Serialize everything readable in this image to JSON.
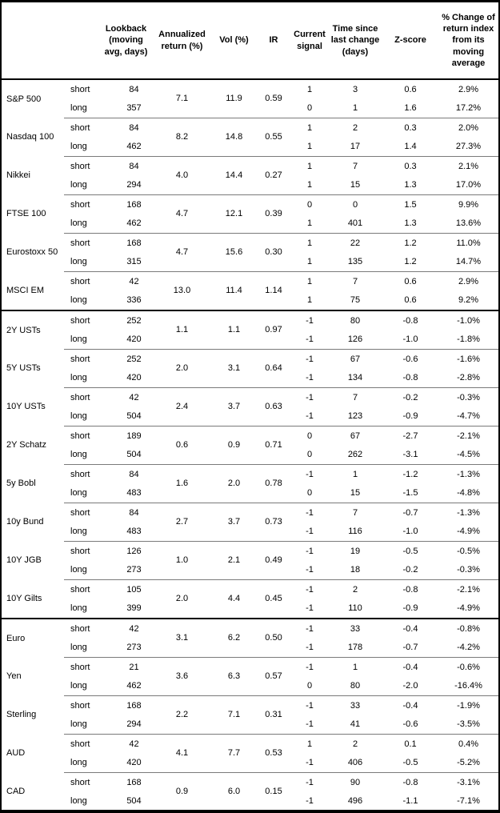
{
  "table": {
    "headers": {
      "asset": "",
      "leg": "",
      "lookback": "Lookback (moving avg, days)",
      "annualized_return": "Annualized return (%)",
      "vol": "Vol (%)",
      "ir": "IR",
      "current_signal": "Current signal",
      "time_since": "Time since last change (days)",
      "z_score": "Z-score",
      "pct_change": "% Change of return index from its moving average"
    },
    "sections": [
      {
        "groups": [
          {
            "asset": "S&P 500",
            "annualized_return": "7.1",
            "vol": "11.9",
            "ir": "0.59",
            "rows": [
              {
                "leg": "short",
                "lookback": "84",
                "signal": "1",
                "time": "3",
                "z": "0.6",
                "change": "2.9%"
              },
              {
                "leg": "long",
                "lookback": "357",
                "signal": "0",
                "time": "1",
                "z": "1.6",
                "change": "17.2%"
              }
            ]
          },
          {
            "asset": "Nasdaq 100",
            "annualized_return": "8.2",
            "vol": "14.8",
            "ir": "0.55",
            "rows": [
              {
                "leg": "short",
                "lookback": "84",
                "signal": "1",
                "time": "2",
                "z": "0.3",
                "change": "2.0%"
              },
              {
                "leg": "long",
                "lookback": "462",
                "signal": "1",
                "time": "17",
                "z": "1.4",
                "change": "27.3%"
              }
            ]
          },
          {
            "asset": "Nikkei",
            "annualized_return": "4.0",
            "vol": "14.4",
            "ir": "0.27",
            "rows": [
              {
                "leg": "short",
                "lookback": "84",
                "signal": "1",
                "time": "7",
                "z": "0.3",
                "change": "2.1%"
              },
              {
                "leg": "long",
                "lookback": "294",
                "signal": "1",
                "time": "15",
                "z": "1.3",
                "change": "17.0%"
              }
            ]
          },
          {
            "asset": "FTSE 100",
            "annualized_return": "4.7",
            "vol": "12.1",
            "ir": "0.39",
            "rows": [
              {
                "leg": "short",
                "lookback": "168",
                "signal": "0",
                "time": "0",
                "z": "1.5",
                "change": "9.9%"
              },
              {
                "leg": "long",
                "lookback": "462",
                "signal": "1",
                "time": "401",
                "z": "1.3",
                "change": "13.6%"
              }
            ]
          },
          {
            "asset": "Eurostoxx 50",
            "annualized_return": "4.7",
            "vol": "15.6",
            "ir": "0.30",
            "rows": [
              {
                "leg": "short",
                "lookback": "168",
                "signal": "1",
                "time": "22",
                "z": "1.2",
                "change": "11.0%"
              },
              {
                "leg": "long",
                "lookback": "315",
                "signal": "1",
                "time": "135",
                "z": "1.2",
                "change": "14.7%"
              }
            ]
          },
          {
            "asset": "MSCI EM",
            "annualized_return": "13.0",
            "vol": "11.4",
            "ir": "1.14",
            "rows": [
              {
                "leg": "short",
                "lookback": "42",
                "signal": "1",
                "time": "7",
                "z": "0.6",
                "change": "2.9%"
              },
              {
                "leg": "long",
                "lookback": "336",
                "signal": "1",
                "time": "75",
                "z": "0.6",
                "change": "9.2%"
              }
            ]
          }
        ]
      },
      {
        "groups": [
          {
            "asset": "2Y USTs",
            "annualized_return": "1.1",
            "vol": "1.1",
            "ir": "0.97",
            "rows": [
              {
                "leg": "short",
                "lookback": "252",
                "signal": "-1",
                "time": "80",
                "z": "-0.8",
                "change": "-1.0%"
              },
              {
                "leg": "long",
                "lookback": "420",
                "signal": "-1",
                "time": "126",
                "z": "-1.0",
                "change": "-1.8%"
              }
            ]
          },
          {
            "asset": "5Y USTs",
            "annualized_return": "2.0",
            "vol": "3.1",
            "ir": "0.64",
            "rows": [
              {
                "leg": "short",
                "lookback": "252",
                "signal": "-1",
                "time": "67",
                "z": "-0.6",
                "change": "-1.6%"
              },
              {
                "leg": "long",
                "lookback": "420",
                "signal": "-1",
                "time": "134",
                "z": "-0.8",
                "change": "-2.8%"
              }
            ]
          },
          {
            "asset": "10Y USTs",
            "annualized_return": "2.4",
            "vol": "3.7",
            "ir": "0.63",
            "rows": [
              {
                "leg": "short",
                "lookback": "42",
                "signal": "-1",
                "time": "7",
                "z": "-0.2",
                "change": "-0.3%"
              },
              {
                "leg": "long",
                "lookback": "504",
                "signal": "-1",
                "time": "123",
                "z": "-0.9",
                "change": "-4.7%"
              }
            ]
          },
          {
            "asset": "2Y Schatz",
            "annualized_return": "0.6",
            "vol": "0.9",
            "ir": "0.71",
            "rows": [
              {
                "leg": "short",
                "lookback": "189",
                "signal": "0",
                "time": "67",
                "z": "-2.7",
                "change": "-2.1%"
              },
              {
                "leg": "long",
                "lookback": "504",
                "signal": "0",
                "time": "262",
                "z": "-3.1",
                "change": "-4.5%"
              }
            ]
          },
          {
            "asset": "5y Bobl",
            "annualized_return": "1.6",
            "vol": "2.0",
            "ir": "0.78",
            "rows": [
              {
                "leg": "short",
                "lookback": "84",
                "signal": "-1",
                "time": "1",
                "z": "-1.2",
                "change": "-1.3%"
              },
              {
                "leg": "long",
                "lookback": "483",
                "signal": "0",
                "time": "15",
                "z": "-1.5",
                "change": "-4.8%"
              }
            ]
          },
          {
            "asset": "10y Bund",
            "annualized_return": "2.7",
            "vol": "3.7",
            "ir": "0.73",
            "rows": [
              {
                "leg": "short",
                "lookback": "84",
                "signal": "-1",
                "time": "7",
                "z": "-0.7",
                "change": "-1.3%"
              },
              {
                "leg": "long",
                "lookback": "483",
                "signal": "-1",
                "time": "116",
                "z": "-1.0",
                "change": "-4.9%"
              }
            ]
          },
          {
            "asset": "10Y JGB",
            "annualized_return": "1.0",
            "vol": "2.1",
            "ir": "0.49",
            "rows": [
              {
                "leg": "short",
                "lookback": "126",
                "signal": "-1",
                "time": "19",
                "z": "-0.5",
                "change": "-0.5%"
              },
              {
                "leg": "long",
                "lookback": "273",
                "signal": "-1",
                "time": "18",
                "z": "-0.2",
                "change": "-0.3%"
              }
            ]
          },
          {
            "asset": "10Y Gilts",
            "annualized_return": "2.0",
            "vol": "4.4",
            "ir": "0.45",
            "rows": [
              {
                "leg": "short",
                "lookback": "105",
                "signal": "-1",
                "time": "2",
                "z": "-0.8",
                "change": "-2.1%"
              },
              {
                "leg": "long",
                "lookback": "399",
                "signal": "-1",
                "time": "110",
                "z": "-0.9",
                "change": "-4.9%"
              }
            ]
          }
        ]
      },
      {
        "groups": [
          {
            "asset": "Euro",
            "annualized_return": "3.1",
            "vol": "6.2",
            "ir": "0.50",
            "rows": [
              {
                "leg": "short",
                "lookback": "42",
                "signal": "-1",
                "time": "33",
                "z": "-0.4",
                "change": "-0.8%"
              },
              {
                "leg": "long",
                "lookback": "273",
                "signal": "-1",
                "time": "178",
                "z": "-0.7",
                "change": "-4.2%"
              }
            ]
          },
          {
            "asset": "Yen",
            "annualized_return": "3.6",
            "vol": "6.3",
            "ir": "0.57",
            "rows": [
              {
                "leg": "short",
                "lookback": "21",
                "signal": "-1",
                "time": "1",
                "z": "-0.4",
                "change": "-0.6%"
              },
              {
                "leg": "long",
                "lookback": "462",
                "signal": "0",
                "time": "80",
                "z": "-2.0",
                "change": "-16.4%"
              }
            ]
          },
          {
            "asset": "Sterling",
            "annualized_return": "2.2",
            "vol": "7.1",
            "ir": "0.31",
            "rows": [
              {
                "leg": "short",
                "lookback": "168",
                "signal": "-1",
                "time": "33",
                "z": "-0.4",
                "change": "-1.9%"
              },
              {
                "leg": "long",
                "lookback": "294",
                "signal": "-1",
                "time": "41",
                "z": "-0.6",
                "change": "-3.5%"
              }
            ]
          },
          {
            "asset": "AUD",
            "annualized_return": "4.1",
            "vol": "7.7",
            "ir": "0.53",
            "rows": [
              {
                "leg": "short",
                "lookback": "42",
                "signal": "1",
                "time": "2",
                "z": "0.1",
                "change": "0.4%"
              },
              {
                "leg": "long",
                "lookback": "420",
                "signal": "-1",
                "time": "406",
                "z": "-0.5",
                "change": "-5.2%"
              }
            ]
          },
          {
            "asset": "CAD",
            "annualized_return": "0.9",
            "vol": "6.0",
            "ir": "0.15",
            "rows": [
              {
                "leg": "short",
                "lookback": "168",
                "signal": "-1",
                "time": "90",
                "z": "-0.8",
                "change": "-3.1%"
              },
              {
                "leg": "long",
                "lookback": "504",
                "signal": "-1",
                "time": "496",
                "z": "-1.1",
                "change": "-7.1%"
              }
            ]
          }
        ]
      }
    ]
  }
}
